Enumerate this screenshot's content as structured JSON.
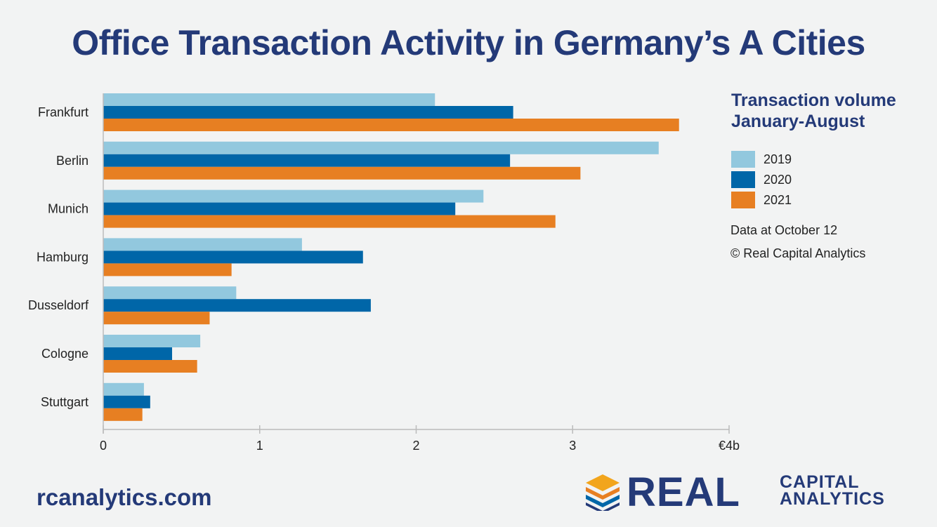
{
  "title": "Office Transaction Activity in Germany’s A Cities",
  "legend": {
    "heading_line1": "Transaction volume",
    "heading_line2": "January-August"
  },
  "notes": {
    "data_date": "Data at October 12",
    "copyright": "© Real Capital Analytics"
  },
  "website": "rcanalytics.com",
  "logo": {
    "word": "REAL",
    "sub_line1": "CAPITAL",
    "sub_line2": "ANALYTICS"
  },
  "colors": {
    "title": "#243a78",
    "series_2019": "#92c8de",
    "series_2020": "#0066a8",
    "series_2021": "#e77f22",
    "background": "#f2f3f3"
  },
  "chart_data": {
    "type": "bar",
    "orientation": "horizontal",
    "categories": [
      "Frankfurt",
      "Berlin",
      "Munich",
      "Hamburg",
      "Dusseldorf",
      "Cologne",
      "Stuttgart"
    ],
    "series": [
      {
        "name": "2019",
        "color": "#92c8de",
        "values": [
          2.12,
          3.55,
          2.43,
          1.27,
          0.85,
          0.62,
          0.26
        ]
      },
      {
        "name": "2020",
        "color": "#0066a8",
        "values": [
          2.62,
          2.6,
          2.25,
          1.66,
          1.71,
          0.44,
          0.3
        ]
      },
      {
        "name": "2021",
        "color": "#e77f22",
        "values": [
          3.68,
          3.05,
          2.89,
          0.82,
          0.68,
          0.6,
          0.25
        ]
      }
    ],
    "x_ticks": [
      "0",
      "1",
      "2",
      "3",
      "€4b"
    ],
    "xlim": [
      0,
      4
    ],
    "grid": false,
    "legend_position": "right"
  }
}
